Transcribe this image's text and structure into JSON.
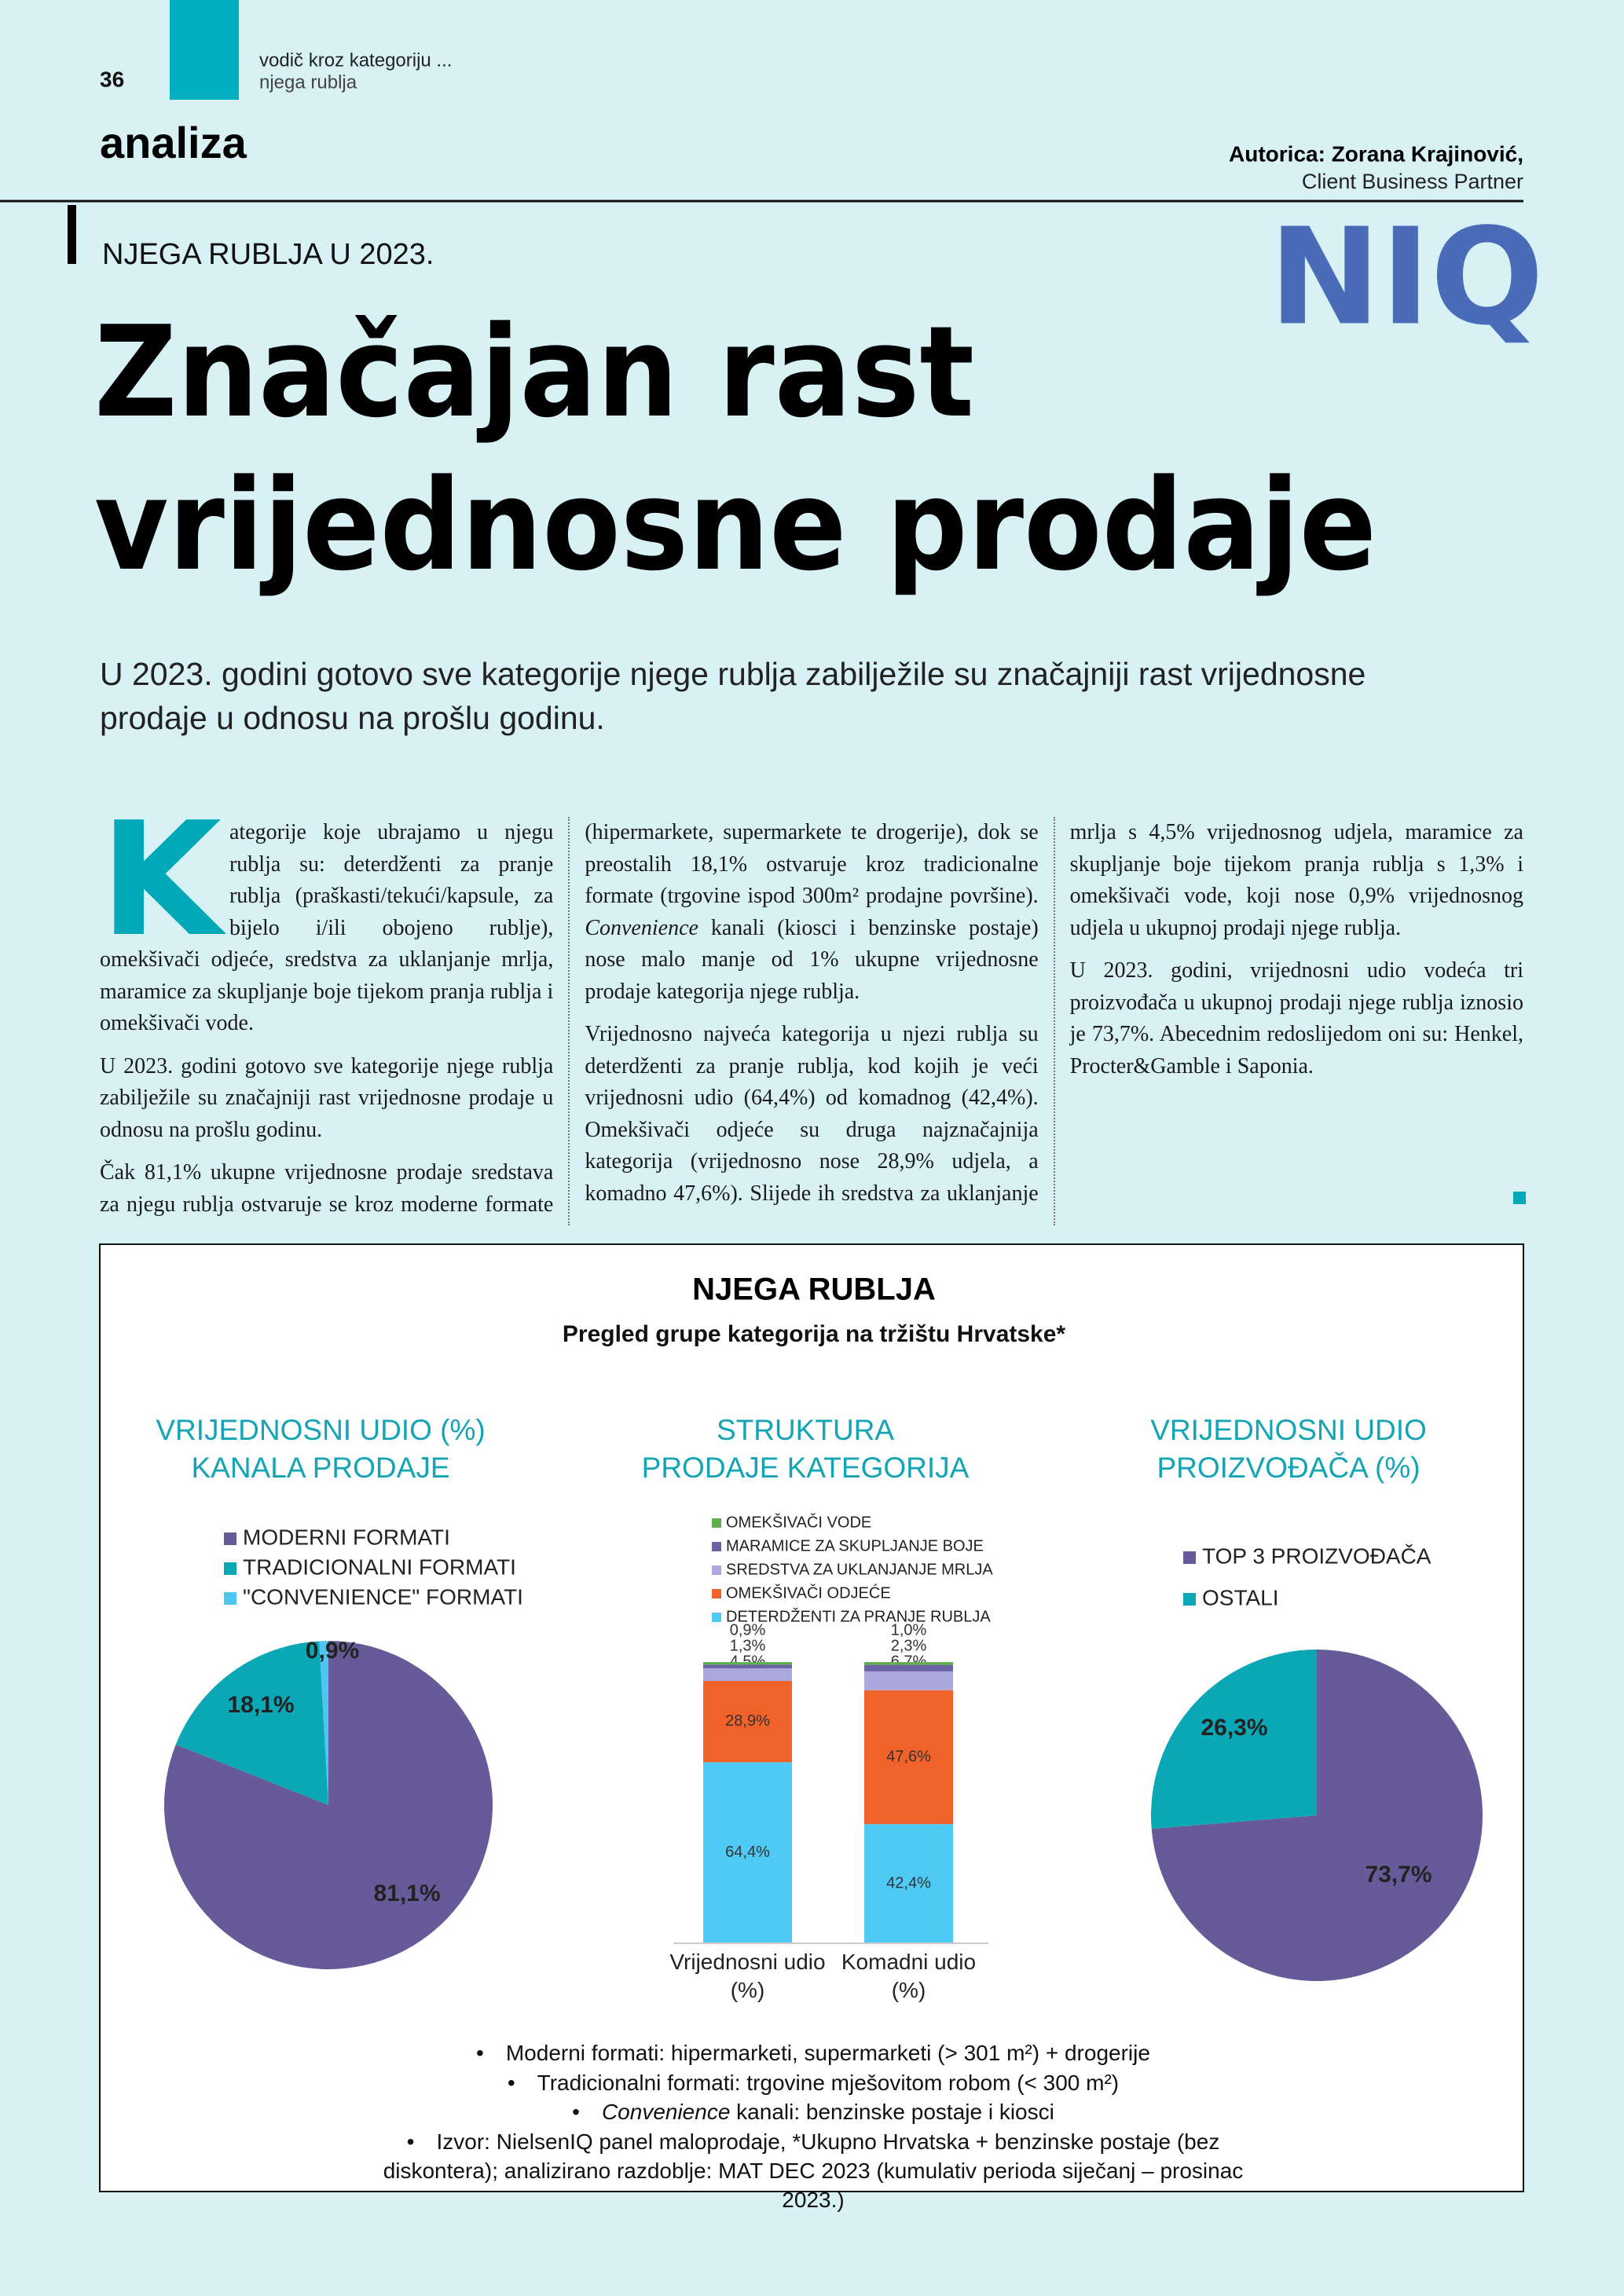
{
  "header": {
    "page_number": "36",
    "section_line1": "vodič kroz kategoriju ...",
    "section_line2": "njega rublja",
    "section": "analiza",
    "author": "Autorica: Zorana Krajinović,",
    "author_role": "Client Business Partner",
    "logo": "NIQ"
  },
  "article": {
    "kicker": "NJEGA RUBLJA U 2023.",
    "title_lines": [
      "Značajan rast",
      "vrijednosne prodaje"
    ],
    "lead": "U 2023. godini gotovo sve kategorije njege rublja zabilježile su značajniji rast vrijednosne prodaje u odnosu na prošlu godinu.",
    "drop_cap": "K",
    "paragraphs": [
      "ategorije koje ubrajamo u njegu rublja su: deterdženti za pranje rublja (praškasti/tekući/kapsule, za bijelo i/ili obojeno rublje), omekšivači odjeće, sredstva za uklanjanje mrlja, maramice za skupljanje boje tijekom pranja rublja i omekšivači vode.",
      "U 2023. godini gotovo sve kategorije njege rublja zabilježile su značajniji rast vrijednosne prodaje u odnosu na prošlu godinu.",
      [
        "Čak 81,1% ukupne vrijednosne prodaje sredstava za njegu rublja ostvaruje se kroz moderne formate (hipermarkete, supermarkete te drogerije), dok se preostalih 18,1% ostvaruje kroz tradicionalne formate (trgovine ispod 300m² prodajne površine). ",
        "Convenience",
        " kanali (kiosci i benzinske postaje) nose malo manje od 1% ukupne vrijednosne prodaje kategorija njege rublja."
      ],
      "Vrijednosno najveća kategorija u njezi rublja su deterdženti za pranje rublja, kod kojih je veći vrijednosni udio (64,4%) od komadnog (42,4%). Omekšivači odjeće su druga najznačajnija kategorija (vrijednosno nose 28,9% udjela, a komadno 47,6%). Slijede ih sredstva za uklanjanje mrlja s 4,5% vrijednosnog udjela, maramice za skupljanje boje tijekom pranja rublja s 1,3% i omekšivači vode, koji nose 0,9% vrijednosnog udjela u ukupnoj prodaji njege rublja.",
      "U 2023. godini, vrijednosni udio vodeća tri proizvođača u ukupnoj prodaji njege rublja iznosio je 73,7%. Abecednim redoslijedom oni su: Henkel, Procter&Gamble i Saponia."
    ]
  },
  "infobox": {
    "title": "NJEGA RUBLJA",
    "subtitle": "Pregled grupe kategorija na tržištu Hrvatske*",
    "notes": [
      [
        "Moderni formati: hipermarketi, supermarketi (> 301 m²) + drogerije"
      ],
      [
        "Tradicionalni formati: trgovine mješovitom robom (< 300 m²)"
      ],
      [
        "",
        "Convenience",
        " kanali: benzinske postaje i kiosci"
      ],
      [
        "Izvor: NielsenIQ panel maloprodaje, *Ukupno Hrvatska + benzinske postaje (bez diskontera); analizirano razdoblje: MAT DEC 2023 (kumulativ perioda siječanj – prosinac 2023.)"
      ]
    ]
  },
  "chart_data": [
    {
      "type": "pie",
      "title": [
        "VRIJEDNOSNI UDIO (%)",
        "KANALA PRODAJE"
      ],
      "categories": [
        "MODERNI FORMATI",
        "TRADICIONALNI FORMATI",
        "\"CONVENIENCE\" FORMATI"
      ],
      "values": [
        81.1,
        18.1,
        0.9
      ],
      "value_labels": [
        "81,1%",
        "18,1%",
        "0,9%"
      ],
      "colors": [
        "#675a98",
        "#0aa7b6",
        "#4fc6f2"
      ]
    },
    {
      "type": "stacked_bar",
      "title": [
        "STRUKTURA",
        "PRODAJE KATEGORIJA"
      ],
      "categories": [
        "Vrijednosni udio (%)",
        "Komadni udio (%)"
      ],
      "ylim": [
        0,
        100
      ],
      "series": [
        {
          "name": "DETERDŽENTI ZA PRANJE RUBLJA",
          "color": "#4fcaf5",
          "values": [
            64.4,
            42.4
          ],
          "value_labels": [
            "64,4%",
            "42,4%"
          ]
        },
        {
          "name": "OMEKŠIVAČI ODJEĆE",
          "color": "#f0622a",
          "values": [
            28.9,
            47.6
          ],
          "value_labels": [
            "28,9%",
            "47,6%"
          ]
        },
        {
          "name": "SREDSTVA ZA UKLANJANJE MRLJA",
          "color": "#aaa8dc",
          "values": [
            4.5,
            6.7
          ],
          "value_labels": [
            "4,5%",
            "6,7%"
          ]
        },
        {
          "name": "MARAMICE ZA SKUPLJANJE BOJE",
          "color": "#6b62a6",
          "values": [
            1.3,
            2.3
          ],
          "value_labels": [
            "1,3%",
            "2,3%"
          ]
        },
        {
          "name": "OMEKŠIVAČI VODE",
          "color": "#5fae4f",
          "values": [
            0.9,
            1.0
          ],
          "value_labels": [
            "0,9%",
            "1,0%"
          ]
        }
      ]
    },
    {
      "type": "pie",
      "title": [
        "VRIJEDNOSNI UDIO",
        "PROIZVOĐAČA (%)"
      ],
      "categories": [
        "TOP 3 PROIZVOĐAČA",
        "OSTALI"
      ],
      "values": [
        73.7,
        26.3
      ],
      "value_labels": [
        "73,7%",
        "26,3%"
      ],
      "colors": [
        "#675a98",
        "#0aa7b6"
      ]
    }
  ]
}
